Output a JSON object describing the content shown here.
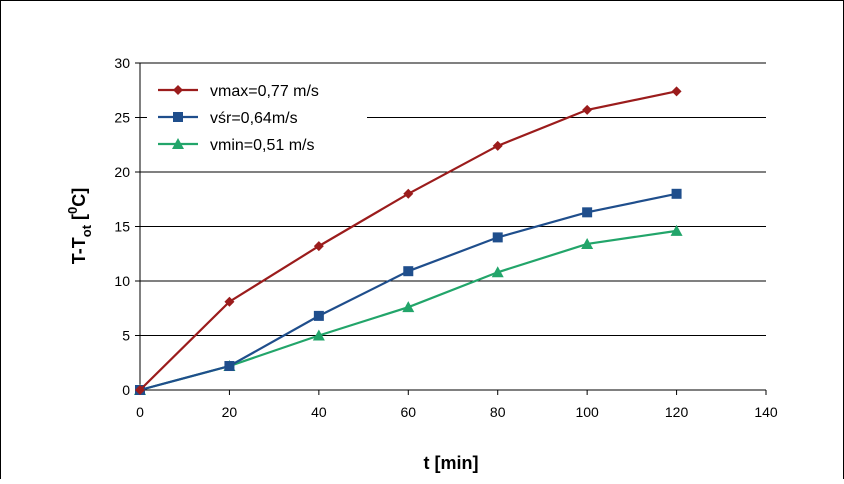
{
  "chart_data": {
    "type": "line",
    "title": "",
    "xlabel": "t [min]",
    "ylabel": {
      "main": "T-T",
      "sub": "ot",
      "open": " [",
      "sup": "0",
      "unit": "C]"
    },
    "xlim": [
      0,
      140
    ],
    "ylim": [
      0,
      30
    ],
    "xticks": [
      "0",
      "20",
      "40",
      "60",
      "80",
      "100",
      "120",
      "140"
    ],
    "yticks": [
      "0",
      "5",
      "10",
      "15",
      "20",
      "25",
      "30"
    ],
    "grid": "horizontal",
    "legend_position": "top-left",
    "x": [
      0,
      20,
      40,
      60,
      80,
      100,
      120
    ],
    "series": [
      {
        "name": "vmax=0,77 m/s",
        "color": "#9b1c1c",
        "marker": "diamond",
        "values": [
          0,
          8.1,
          13.2,
          18.0,
          22.4,
          25.7,
          27.4
        ]
      },
      {
        "name": "vśr=0,64m/s",
        "color": "#1f4e8c",
        "marker": "square",
        "values": [
          0,
          2.2,
          6.8,
          10.9,
          14.0,
          16.3,
          18.0
        ]
      },
      {
        "name": "vmin=0,51 m/s",
        "color": "#22a56a",
        "marker": "triangle",
        "values": [
          0,
          2.2,
          5.0,
          7.6,
          10.8,
          13.4,
          14.6
        ]
      }
    ]
  }
}
